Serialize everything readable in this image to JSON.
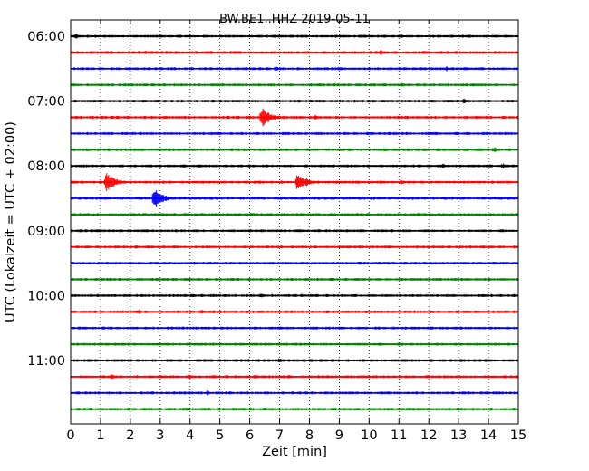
{
  "chart_data": {
    "type": "line",
    "title": "BW.BE1..HHZ 2019-05-11",
    "xlabel": "Zeit  [min]",
    "ylabel": "UTC (Lokalzeit = UTC + 02:00)",
    "xlim": [
      0,
      15
    ],
    "xticks": [
      "0",
      "1",
      "2",
      "3",
      "4",
      "5",
      "6",
      "7",
      "8",
      "9",
      "10",
      "11",
      "12",
      "13",
      "14",
      "15"
    ],
    "yticks": [
      "06:00",
      "07:00",
      "08:00",
      "09:00",
      "10:00",
      "11:00"
    ],
    "grid": "vertical dotted",
    "line_colors": [
      "#000000",
      "#ff0000",
      "#0000ff",
      "#008000"
    ],
    "traces": [
      {
        "start": "06:00",
        "events": [
          0.2,
          11.1
        ]
      },
      {
        "start": "06:15",
        "events": [
          10.4
        ]
      },
      {
        "start": "06:30",
        "events": [
          6.9,
          12.6
        ]
      },
      {
        "start": "06:45",
        "events": [
          11.1
        ]
      },
      {
        "start": "07:00",
        "events": [
          13.2
        ]
      },
      {
        "start": "07:15",
        "events": [
          6.4,
          8.2
        ]
      },
      {
        "start": "07:30",
        "events": []
      },
      {
        "start": "07:45",
        "events": [
          14.2
        ]
      },
      {
        "start": "08:00",
        "events": [
          12.5,
          14.5
        ]
      },
      {
        "start": "08:15",
        "events": [
          1.2,
          7.6,
          11.1
        ]
      },
      {
        "start": "08:30",
        "events": [
          2.8
        ]
      },
      {
        "start": "08:45",
        "events": []
      },
      {
        "start": "09:00",
        "events": []
      },
      {
        "start": "09:15",
        "events": []
      },
      {
        "start": "09:30",
        "events": []
      },
      {
        "start": "09:45",
        "events": []
      },
      {
        "start": "10:00",
        "events": [
          6.4
        ]
      },
      {
        "start": "10:15",
        "events": [
          2.3,
          4.4
        ]
      },
      {
        "start": "10:30",
        "events": []
      },
      {
        "start": "10:45",
        "events": []
      },
      {
        "start": "11:00",
        "events": [
          7.0
        ]
      },
      {
        "start": "11:15",
        "events": [
          1.4,
          4.0,
          6.2
        ]
      },
      {
        "start": "11:30",
        "events": [
          4.6
        ]
      },
      {
        "start": "11:45",
        "events": []
      }
    ]
  }
}
